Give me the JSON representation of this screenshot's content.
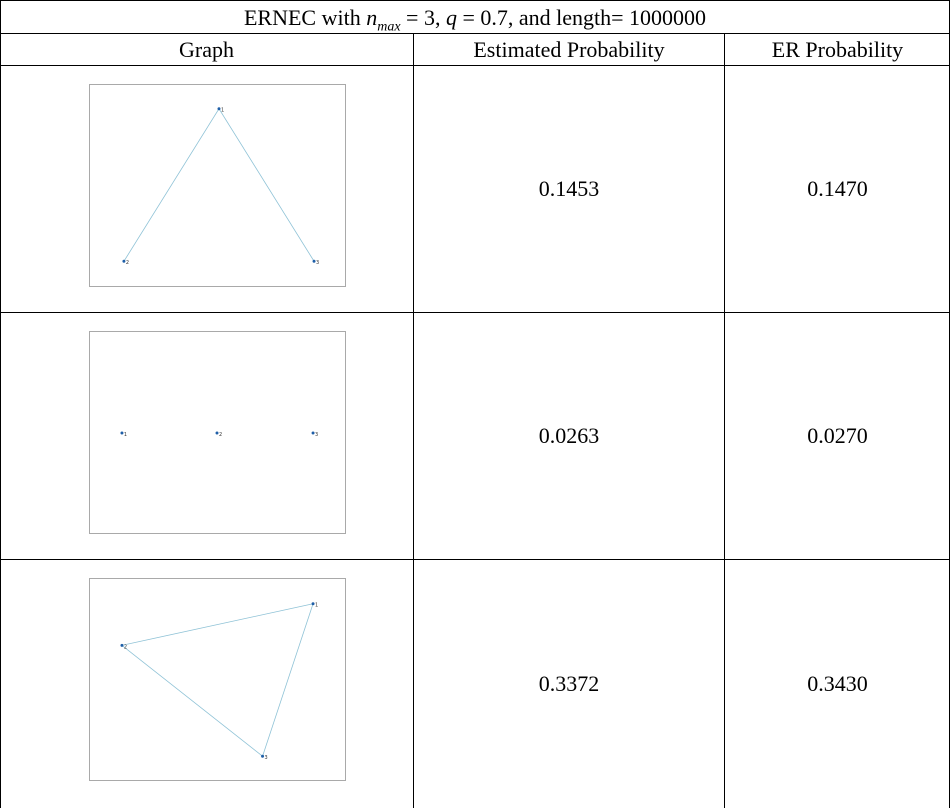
{
  "table": {
    "title_prefix": "ERNEC with ",
    "title_var": "n",
    "title_sub": "max",
    "title_eq1": " = 3, ",
    "title_q": "q",
    "title_eq2": " = 0.7, and length= 1000000",
    "headers": [
      "Graph",
      "Estimated Probability",
      "ER Probability"
    ],
    "rows": [
      {
        "estimated": "0.1453",
        "er": "0.1470",
        "nodes": [
          "1",
          "2",
          "3"
        ],
        "edge_desc": "triangle-open"
      },
      {
        "estimated": "0.0263",
        "er": "0.0270",
        "nodes": [
          "1",
          "2",
          "3"
        ],
        "edge_desc": "no-edges"
      },
      {
        "estimated": "0.3372",
        "er": "0.3430",
        "nodes": [
          "1",
          "2",
          "3"
        ],
        "edge_desc": "triangle"
      }
    ]
  },
  "colors": {
    "grid": "#000000",
    "thumb_border": "#a9a9a9",
    "node": "#1f5fa8",
    "edge": "#8ec2d6"
  }
}
